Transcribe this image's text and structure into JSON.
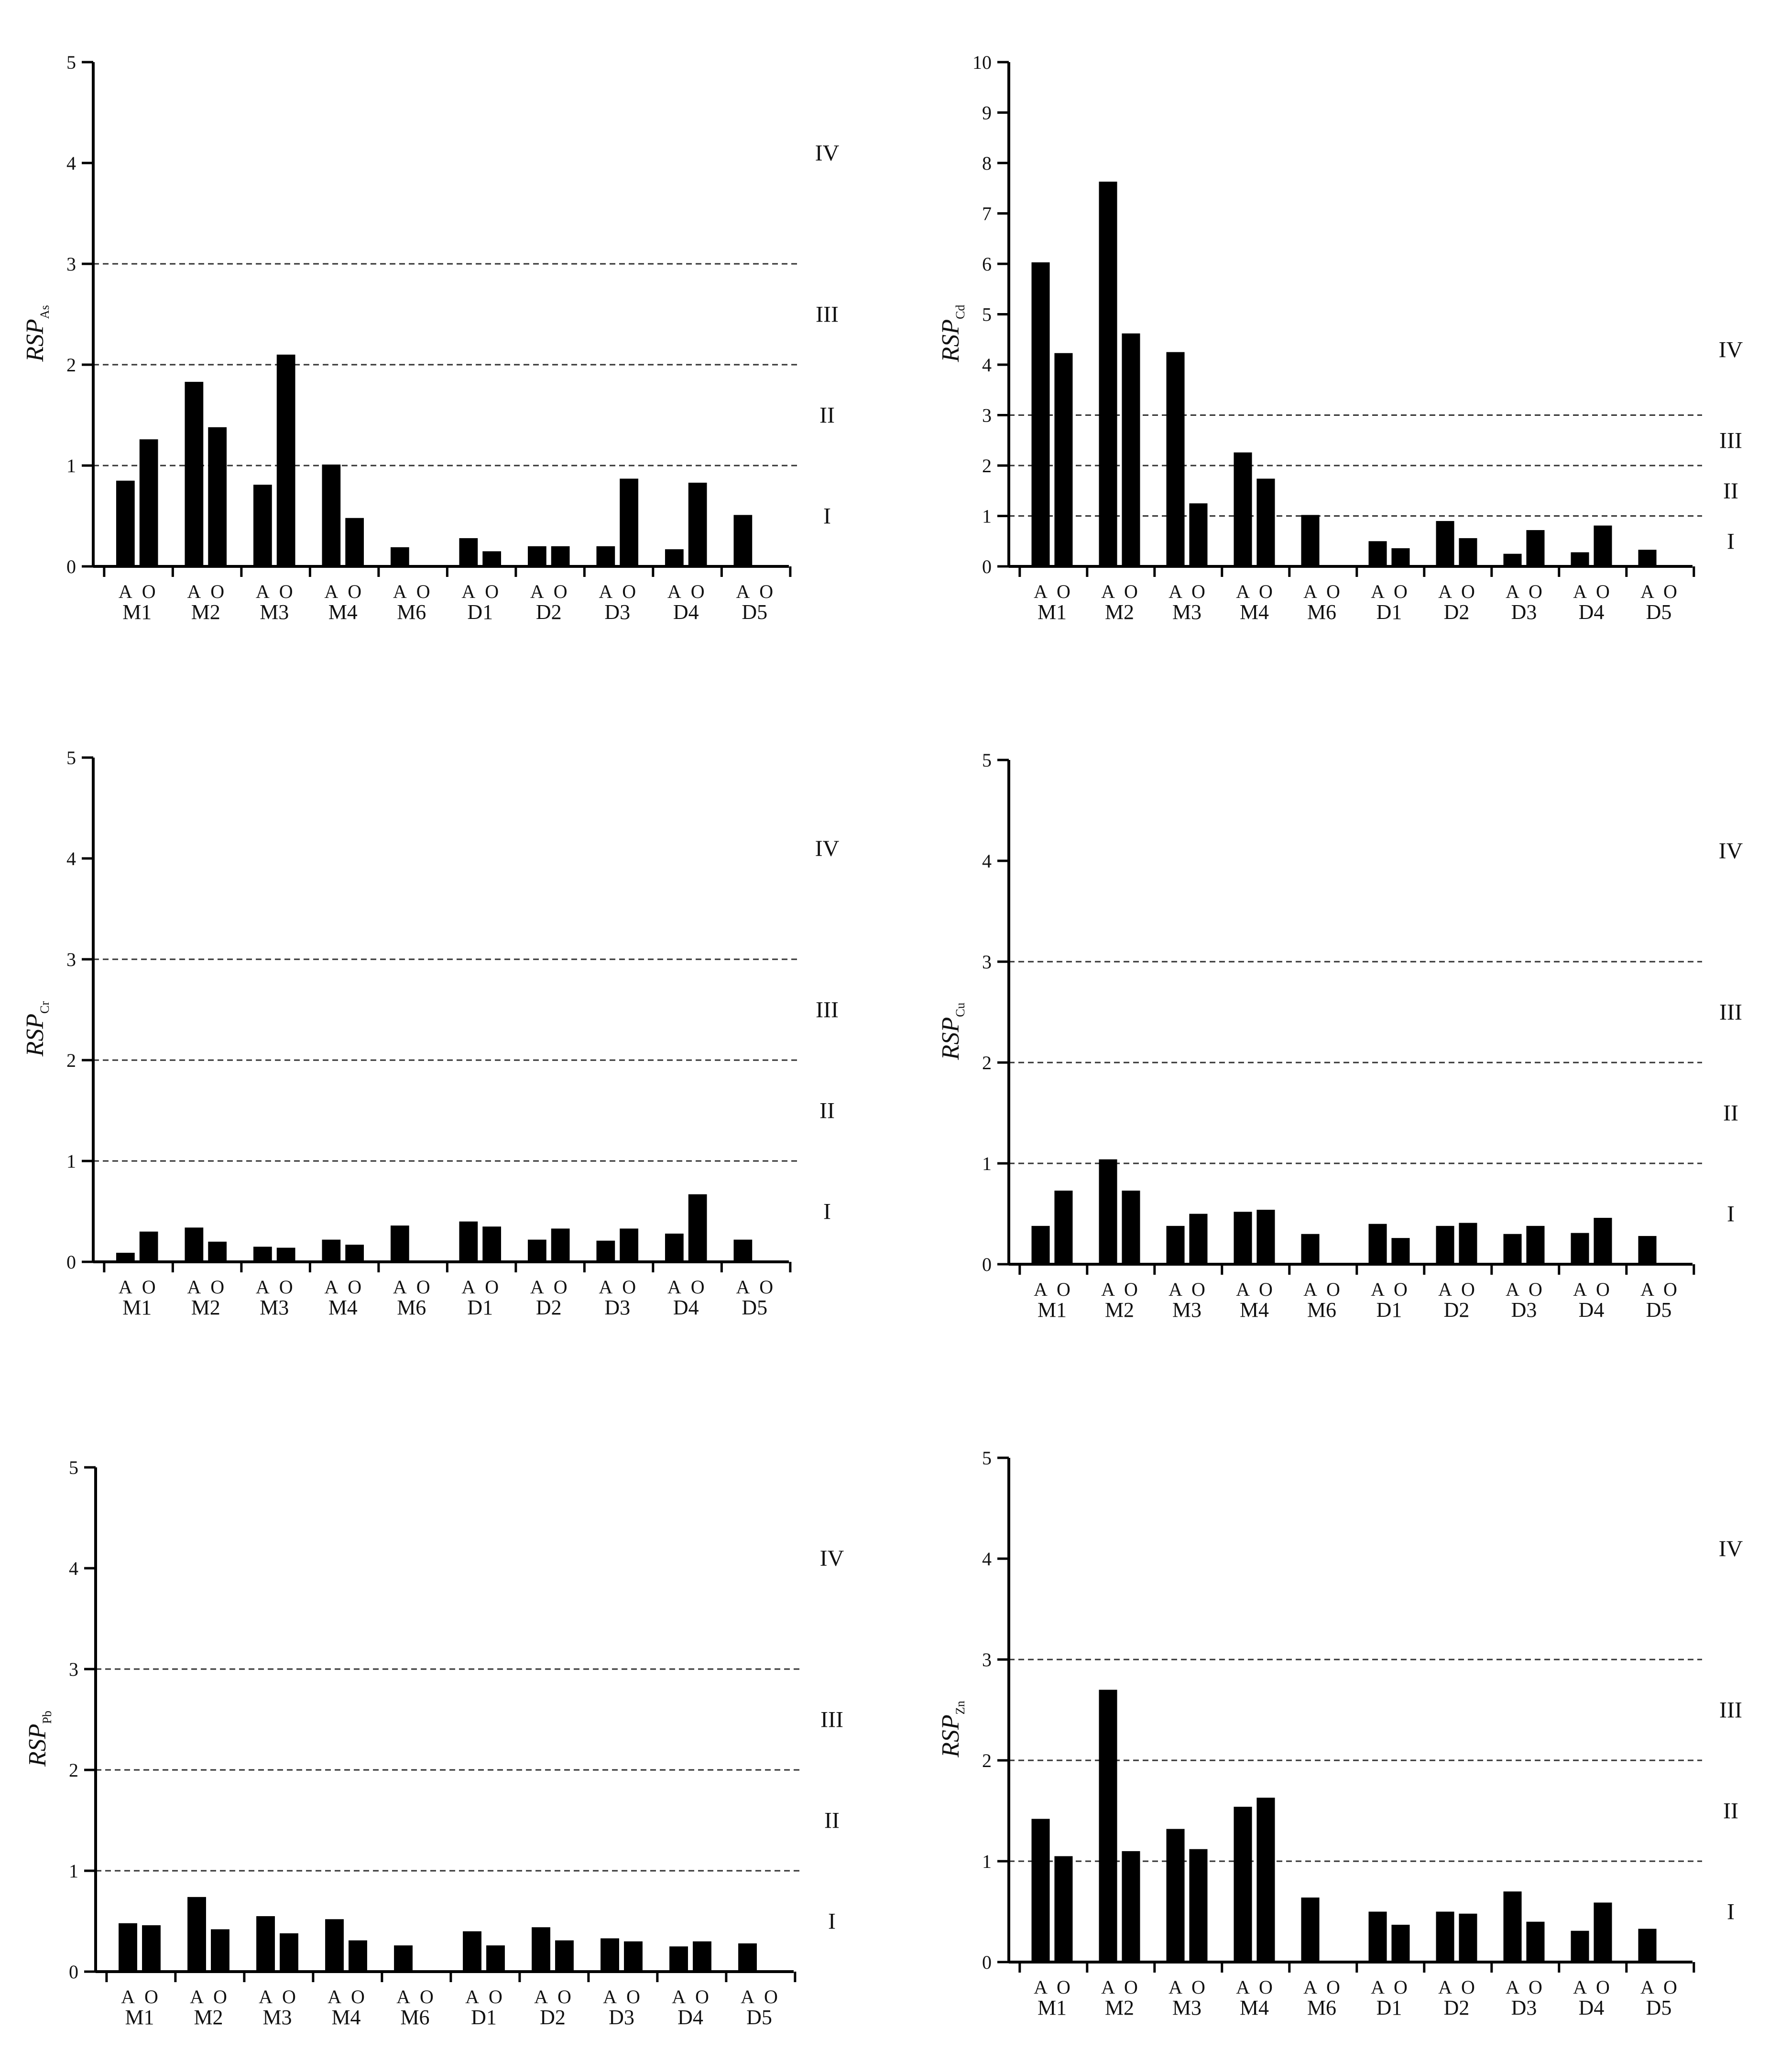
{
  "chart_data": [
    {
      "type": "bar",
      "ylabel_main": "RSP",
      "ylabel_sub": "As",
      "ylim": [
        0,
        5
      ],
      "yticks": [
        "0",
        "1",
        "2",
        "3",
        "4",
        "5"
      ],
      "categories": [
        "M1",
        "M2",
        "M3",
        "M4",
        "M6",
        "D1",
        "D2",
        "D3",
        "D4",
        "D5"
      ],
      "bar_labels": [
        "A",
        "O"
      ],
      "series": [
        {
          "values": [
            0.85,
            1.83,
            0.81,
            1.01,
            0.19,
            0.28,
            0.2,
            0.2,
            0.17,
            0.51
          ]
        },
        {
          "values": [
            1.26,
            1.38,
            2.1,
            0.48,
            0,
            0.15,
            0.2,
            0.87,
            0.83,
            0
          ]
        }
      ],
      "thresholds": [
        1,
        2,
        3
      ],
      "zones": [
        "I",
        "II",
        "III",
        "IV"
      ],
      "bar_color": "#000000"
    },
    {
      "type": "bar",
      "ylabel_main": "RSP",
      "ylabel_sub": "Cd",
      "ylim": [
        0,
        10
      ],
      "yticks": [
        "0",
        "1",
        "2",
        "3",
        "4",
        "5",
        "6",
        "7",
        "8",
        "9",
        "10"
      ],
      "categories": [
        "M1",
        "M2",
        "M3",
        "M4",
        "M6",
        "D1",
        "D2",
        "D3",
        "D4",
        "D5"
      ],
      "bar_labels": [
        "A",
        "O"
      ],
      "series": [
        {
          "values": [
            6.03,
            7.63,
            4.25,
            2.26,
            1.02,
            0.5,
            0.9,
            0.25,
            0.28,
            0.33
          ]
        },
        {
          "values": [
            4.23,
            4.62,
            1.25,
            1.74,
            0,
            0.36,
            0.56,
            0.72,
            0.81,
            0
          ]
        }
      ],
      "thresholds": [
        1,
        2,
        3
      ],
      "zones": [
        "I",
        "II",
        "III",
        "IV"
      ],
      "bar_color": "#000000"
    },
    {
      "type": "bar",
      "ylabel_main": "RSP",
      "ylabel_sub": "Cr",
      "ylim": [
        0,
        5
      ],
      "yticks": [
        "0",
        "1",
        "2",
        "3",
        "4",
        "5"
      ],
      "categories": [
        "M1",
        "M2",
        "M3",
        "M4",
        "M6",
        "D1",
        "D2",
        "D3",
        "D4",
        "D5"
      ],
      "bar_labels": [
        "A",
        "O"
      ],
      "series": [
        {
          "values": [
            0.09,
            0.34,
            0.15,
            0.22,
            0.36,
            0.4,
            0.22,
            0.21,
            0.28,
            0.22
          ]
        },
        {
          "values": [
            0.3,
            0.2,
            0.14,
            0.17,
            0,
            0.35,
            0.33,
            0.33,
            0.67,
            0
          ]
        }
      ],
      "thresholds": [
        1,
        2,
        3
      ],
      "zones": [
        "I",
        "II",
        "III",
        "IV"
      ],
      "bar_color": "#000000"
    },
    {
      "type": "bar",
      "ylabel_main": "RSP",
      "ylabel_sub": "Cu",
      "ylim": [
        0,
        5
      ],
      "yticks": [
        "0",
        "1",
        "2",
        "3",
        "4",
        "5"
      ],
      "categories": [
        "M1",
        "M2",
        "M3",
        "M4",
        "M6",
        "D1",
        "D2",
        "D3",
        "D4",
        "D5"
      ],
      "bar_labels": [
        "A",
        "O"
      ],
      "series": [
        {
          "values": [
            0.38,
            1.04,
            0.38,
            0.52,
            0.3,
            0.4,
            0.38,
            0.3,
            0.31,
            0.28
          ]
        },
        {
          "values": [
            0.73,
            0.73,
            0.5,
            0.54,
            0,
            0.26,
            0.41,
            0.38,
            0.46,
            0
          ]
        }
      ],
      "thresholds": [
        1,
        2,
        3
      ],
      "zones": [
        "I",
        "II",
        "III",
        "IV"
      ],
      "bar_color": "#000000"
    },
    {
      "type": "bar",
      "ylabel_main": "RSP",
      "ylabel_sub": "Pb",
      "ylim": [
        0,
        5
      ],
      "yticks": [
        "0",
        "1",
        "2",
        "3",
        "4",
        "5"
      ],
      "categories": [
        "M1",
        "M2",
        "M3",
        "M4",
        "M6",
        "D1",
        "D2",
        "D3",
        "D4",
        "D5"
      ],
      "bar_labels": [
        "A",
        "O"
      ],
      "series": [
        {
          "values": [
            0.48,
            0.74,
            0.55,
            0.52,
            0.26,
            0.4,
            0.44,
            0.33,
            0.25,
            0.28
          ]
        },
        {
          "values": [
            0.46,
            0.42,
            0.38,
            0.31,
            0,
            0.26,
            0.31,
            0.3,
            0.3,
            0
          ]
        }
      ],
      "thresholds": [
        1,
        2,
        3
      ],
      "zones": [
        "I",
        "II",
        "III",
        "IV"
      ],
      "bar_color": "#000000"
    },
    {
      "type": "bar",
      "ylabel_main": "RSP",
      "ylabel_sub": "Zn",
      "ylim": [
        0,
        5
      ],
      "yticks": [
        "0",
        "1",
        "2",
        "3",
        "4",
        "5"
      ],
      "categories": [
        "M1",
        "M2",
        "M3",
        "M4",
        "M6",
        "D1",
        "D2",
        "D3",
        "D4",
        "D5"
      ],
      "bar_labels": [
        "A",
        "O"
      ],
      "series": [
        {
          "values": [
            1.42,
            2.7,
            1.32,
            1.54,
            0.64,
            0.5,
            0.5,
            0.7,
            0.31,
            0.33
          ]
        },
        {
          "values": [
            1.05,
            1.1,
            1.12,
            1.63,
            0,
            0.37,
            0.48,
            0.4,
            0.59,
            0
          ]
        }
      ],
      "thresholds": [
        1,
        2,
        3
      ],
      "zones": [
        "I",
        "II",
        "III",
        "IV"
      ],
      "bar_color": "#000000"
    }
  ]
}
